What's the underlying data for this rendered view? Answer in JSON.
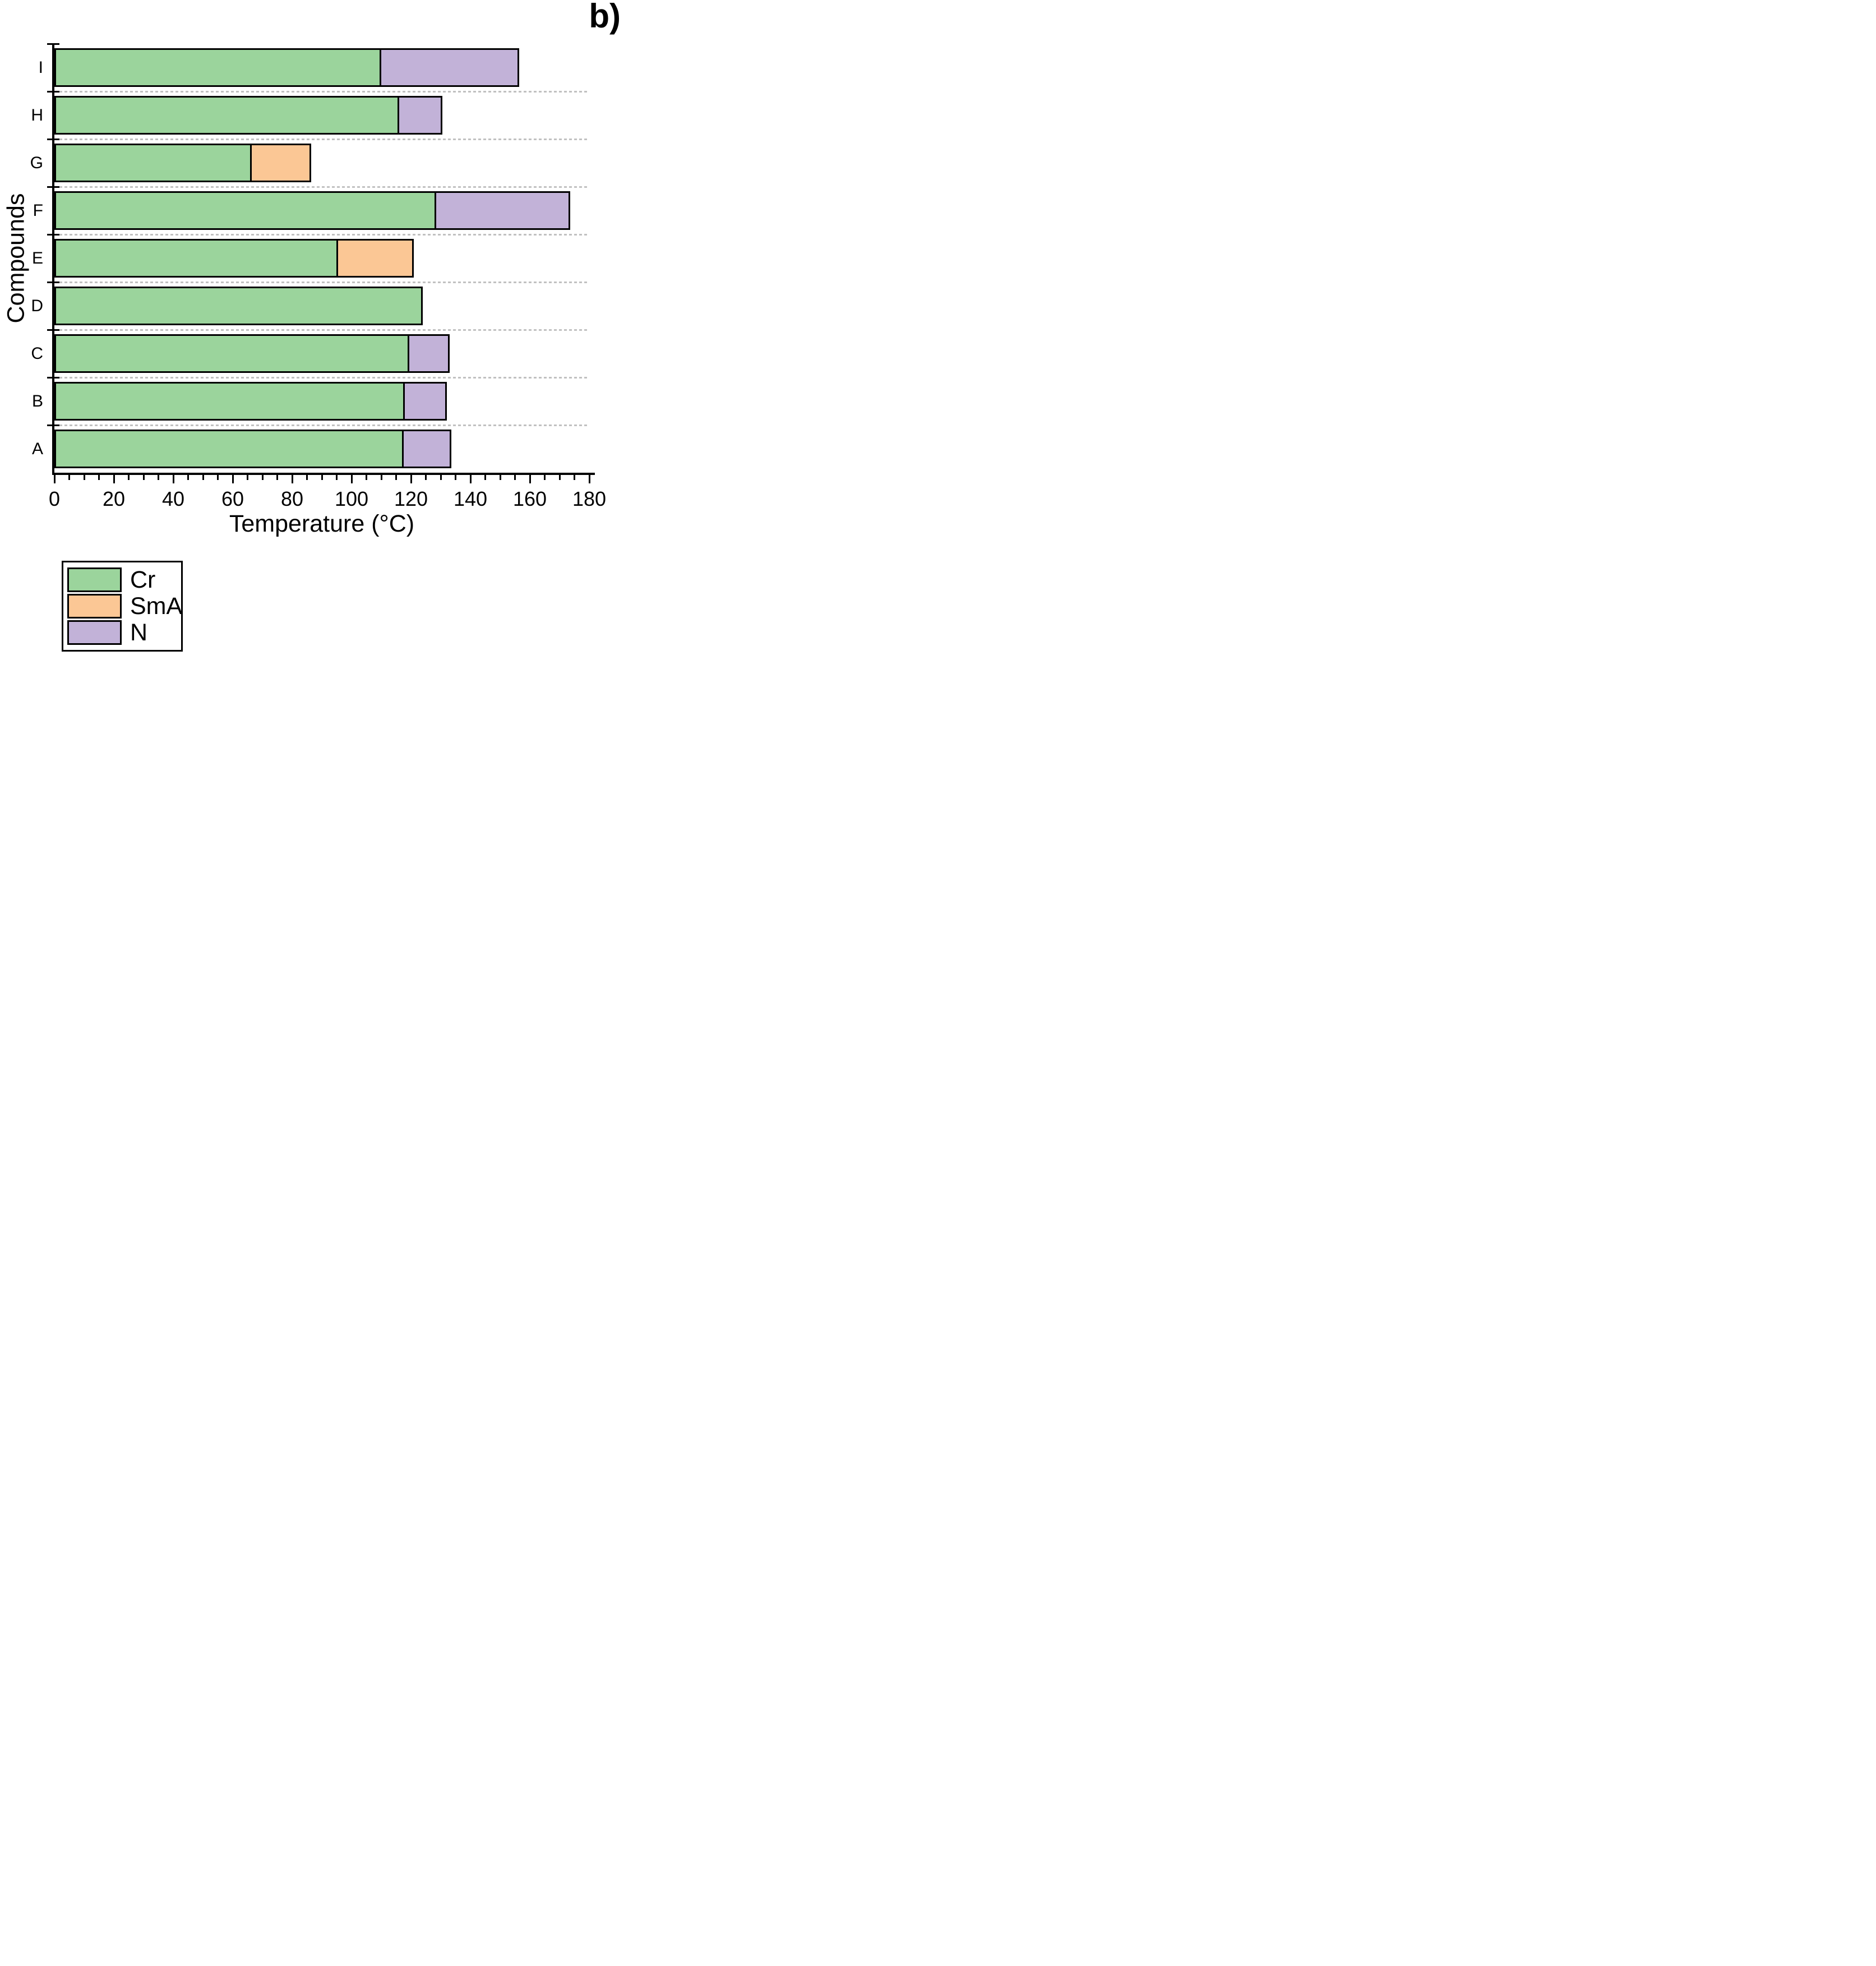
{
  "figure_label": "b)",
  "colors": {
    "axis": "#000000",
    "gridline": "#C1C1C1",
    "background": "#FFFFFF",
    "cr_green": "#9BD49C",
    "sma_orange": "#FBC795",
    "n_purple": "#C2B2D8"
  },
  "chart_data": {
    "type": "bar",
    "orientation": "horizontal",
    "stacked": true,
    "title": "b)",
    "xlabel": "Temperature (°C)",
    "ylabel": "Compounds",
    "xlim": [
      0,
      180
    ],
    "x_major_ticks": [
      0,
      20,
      40,
      60,
      80,
      100,
      120,
      140,
      160,
      180
    ],
    "x_minor_tick_step": 5,
    "grid": "dashed horizontal lines between category rows",
    "legend_position": "bottom-left outside plot",
    "series": [
      {
        "name": "Cr",
        "color": "#9BD49C"
      },
      {
        "name": "SmA",
        "color": "#FBC795"
      },
      {
        "name": "N",
        "color": "#C2B2D8"
      }
    ],
    "categories_top_to_bottom": [
      "I",
      "H",
      "G",
      "F",
      "E",
      "D",
      "C",
      "B",
      "A"
    ],
    "bars": [
      {
        "category": "I",
        "segments": [
          {
            "series": "Cr",
            "start": 0,
            "end": 110
          },
          {
            "series": "N",
            "start": 110,
            "end": 156.5
          }
        ]
      },
      {
        "category": "H",
        "segments": [
          {
            "series": "Cr",
            "start": 0,
            "end": 116
          },
          {
            "series": "N",
            "start": 116,
            "end": 130.5
          }
        ]
      },
      {
        "category": "G",
        "segments": [
          {
            "series": "Cr",
            "start": 0,
            "end": 66.5
          },
          {
            "series": "SmA",
            "start": 66.5,
            "end": 86.5
          }
        ]
      },
      {
        "category": "F",
        "segments": [
          {
            "series": "Cr",
            "start": 0,
            "end": 128.5
          },
          {
            "series": "N",
            "start": 128.5,
            "end": 173.5
          }
        ]
      },
      {
        "category": "E",
        "segments": [
          {
            "series": "Cr",
            "start": 0,
            "end": 95.5
          },
          {
            "series": "SmA",
            "start": 95.5,
            "end": 121
          }
        ]
      },
      {
        "category": "D",
        "segments": [
          {
            "series": "Cr",
            "start": 0,
            "end": 124
          }
        ]
      },
      {
        "category": "C",
        "segments": [
          {
            "series": "Cr",
            "start": 0,
            "end": 119.5
          },
          {
            "series": "N",
            "start": 119.5,
            "end": 133
          }
        ]
      },
      {
        "category": "B",
        "segments": [
          {
            "series": "Cr",
            "start": 0,
            "end": 118
          },
          {
            "series": "N",
            "start": 118,
            "end": 132
          }
        ]
      },
      {
        "category": "A",
        "segments": [
          {
            "series": "Cr",
            "start": 0,
            "end": 117.5
          },
          {
            "series": "N",
            "start": 117.5,
            "end": 133.5
          }
        ]
      }
    ],
    "legend": [
      {
        "label": "Cr",
        "color": "#9BD49C"
      },
      {
        "label": "SmA",
        "color": "#FBC795"
      },
      {
        "label": "N",
        "color": "#C2B2D8"
      }
    ]
  }
}
